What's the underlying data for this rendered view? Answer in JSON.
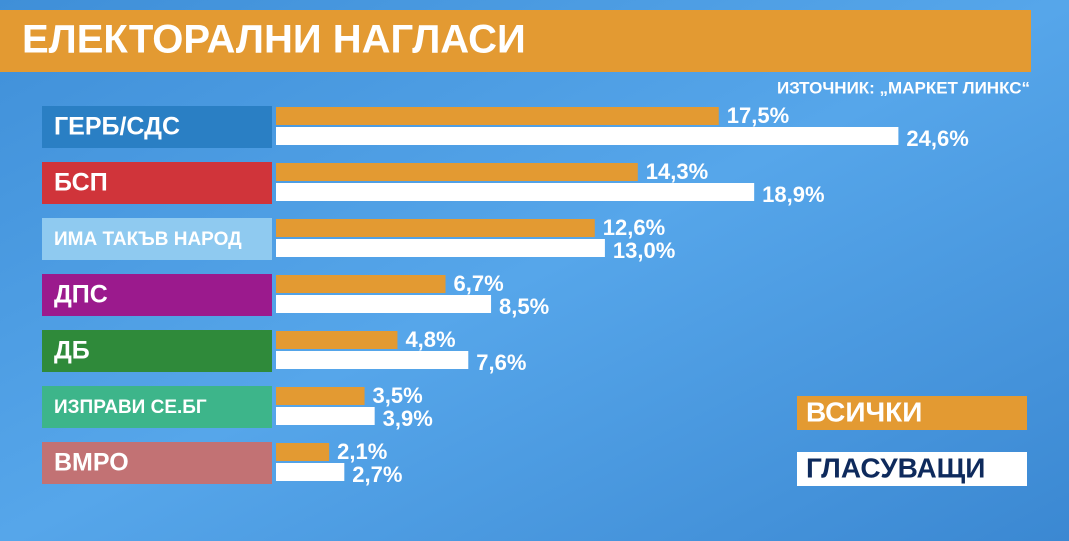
{
  "chart_data": {
    "type": "bar",
    "orientation": "horizontal",
    "title": "ЕЛЕКТОРАЛНИ НАГЛАСИ",
    "source": "ИЗТОЧНИК: „МАРКЕТ ЛИНКС“",
    "categories": [
      "ГЕРБ/СДС",
      "БСП",
      "ИМА ТАКЪВ НАРОД",
      "ДПС",
      "ДБ",
      "ИЗПРАВИ СЕ.БГ",
      "ВМРО"
    ],
    "category_colors": [
      "#2a7fc4",
      "#d0343a",
      "#8fcaf0",
      "#9b1a8d",
      "#2f8a3a",
      "#3db58a",
      "#c27274"
    ],
    "series": [
      {
        "name": "ВСИЧКИ",
        "color": "#e39a32",
        "values": [
          17.5,
          14.3,
          12.6,
          6.7,
          4.8,
          3.5,
          2.1
        ],
        "value_labels": [
          "17,5%",
          "14,3%",
          "12,6%",
          "6,7%",
          "4,8%",
          "3,5%",
          "2,1%"
        ]
      },
      {
        "name": "ГЛАСУВАЩИ",
        "color": "#ffffff",
        "values": [
          24.6,
          18.9,
          13.0,
          8.5,
          7.6,
          3.9,
          2.7
        ],
        "value_labels": [
          "24,6%",
          "18,9%",
          "13,0%",
          "8,5%",
          "7,6%",
          "3,9%",
          "2,7%"
        ]
      }
    ],
    "legend": "bottom-right"
  }
}
